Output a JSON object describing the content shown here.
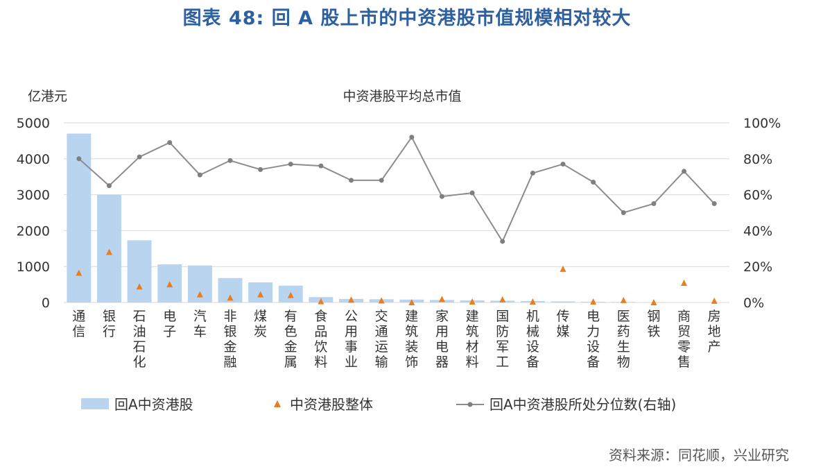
{
  "title": "图表 48: 回 A 股上市的中资港股市值规模相对较大",
  "source": "资料来源：同花顺，兴业研究",
  "chart_data": {
    "type": "bar",
    "subtitle": "中资港股平均总市值",
    "ylabel_left": "亿港元",
    "categories": [
      "通信",
      "银行",
      "石油石化",
      "电子",
      "汽车",
      "非银金融",
      "煤炭",
      "有色金属",
      "食品饮料",
      "公用事业",
      "交通运输",
      "建筑装饰",
      "家用电器",
      "建筑材料",
      "国防军工",
      "机械设备",
      "传媒",
      "电力设备",
      "医药生物",
      "钢铁",
      "商贸零售",
      "房地产"
    ],
    "left_axis": {
      "min": 0,
      "max": 5000,
      "ticks": [
        0,
        1000,
        2000,
        3000,
        4000,
        5000
      ],
      "tick_labels": [
        "0",
        "1000",
        "2000",
        "3000",
        "4000",
        "5000"
      ]
    },
    "right_axis": {
      "min": 0,
      "max": 100,
      "ticks": [
        0,
        20,
        40,
        60,
        80,
        100
      ],
      "tick_labels": [
        "0%",
        "20%",
        "40%",
        "60%",
        "80%",
        "100%"
      ]
    },
    "grid": true,
    "legend_position": "bottom",
    "series": [
      {
        "name": "回A中资港股",
        "type": "bar",
        "axis": "left",
        "color": "#b9d4ef",
        "values": [
          4700,
          3000,
          1730,
          1060,
          1030,
          680,
          560,
          470,
          150,
          100,
          90,
          80,
          70,
          60,
          50,
          40,
          30,
          20,
          15,
          10,
          5,
          3
        ]
      },
      {
        "name": "中资港股整体",
        "type": "scatter",
        "axis": "left",
        "color": "#e87e22",
        "values": [
          820,
          1400,
          440,
          500,
          220,
          130,
          220,
          200,
          30,
          70,
          50,
          0,
          90,
          20,
          80,
          20,
          930,
          20,
          60,
          0,
          540,
          40
        ]
      },
      {
        "name": "回A中资港股所处分位数(右轴)",
        "type": "line",
        "axis": "right",
        "color": "#8c8c8c",
        "values": [
          80,
          65,
          81,
          89,
          71,
          79,
          74,
          77,
          76,
          68,
          68,
          92,
          59,
          61,
          34,
          72,
          77,
          67,
          50,
          55,
          73,
          55
        ]
      }
    ]
  }
}
